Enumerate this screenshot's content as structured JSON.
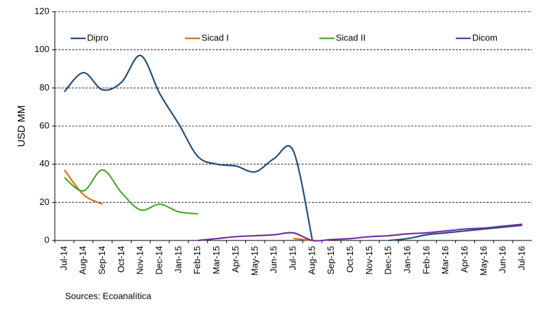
{
  "chart_data": {
    "type": "line",
    "y_label": "USD MM",
    "source": "Sources: Ecoanalítica",
    "categories": [
      "Jul-14",
      "Aug-14",
      "Sep-14",
      "Oct-14",
      "Nov-14",
      "Dec-14",
      "Jan-15",
      "Feb-15",
      "Mar-15",
      "Apr-15",
      "May-15",
      "Jun-15",
      "Jul-15",
      "Aug-15",
      "Sep-15",
      "Oct-15",
      "Nov-15",
      "Dec-15",
      "Jan-16",
      "Feb-16",
      "Mar-16",
      "Apr-16",
      "May-16",
      "Jun-16",
      "Jul-16"
    ],
    "series": [
      {
        "name": "Dipro",
        "color": "#1f4e79",
        "values": [
          78,
          88,
          79,
          83,
          97,
          77,
          61,
          44,
          40,
          39,
          36,
          43,
          47,
          0,
          null,
          null,
          null,
          0,
          1,
          3,
          4,
          5,
          6,
          7,
          8
        ]
      },
      {
        "name": "Sicad I",
        "color": "#e36c0a",
        "values": [
          37,
          24,
          19,
          null,
          null,
          null,
          null,
          null,
          null,
          null,
          null,
          null,
          1,
          0,
          null,
          null,
          null,
          null,
          null,
          null,
          null,
          null,
          null,
          null,
          null
        ]
      },
      {
        "name": "Sicad II",
        "color": "#4ea72e",
        "values": [
          33,
          26,
          37,
          25,
          16,
          19,
          15,
          14,
          null,
          null,
          null,
          null,
          null,
          null,
          null,
          null,
          null,
          null,
          null,
          null,
          null,
          null,
          null,
          null,
          null
        ]
      },
      {
        "name": "Dicom",
        "color": "#7030a0",
        "values": [
          null,
          null,
          null,
          null,
          null,
          null,
          null,
          0,
          1,
          2,
          2.5,
          3,
          4,
          0,
          0.5,
          1,
          2,
          2.5,
          3.5,
          4,
          5,
          6,
          6.5,
          7.5,
          8.5
        ]
      }
    ],
    "ylim": [
      0,
      120
    ],
    "yticks": [
      0,
      20,
      40,
      60,
      80,
      100,
      120
    ],
    "grid": true,
    "legend": "top"
  }
}
